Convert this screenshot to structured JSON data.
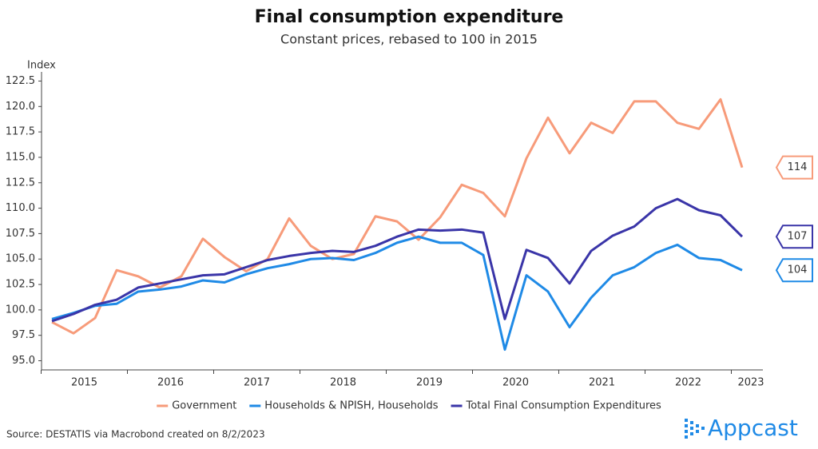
{
  "chart_data": {
    "type": "line",
    "title": "Final consumption expenditure",
    "subtitle": "Constant prices, rebased to 100 in 2015",
    "y_label": "Index",
    "source": "Source: DESTATIS via Macrobond created on 8/2/2023",
    "logo": "Appcast",
    "categories": [
      "2015",
      null,
      null,
      null,
      "2016",
      null,
      null,
      null,
      "2017",
      null,
      null,
      null,
      "2018",
      null,
      null,
      null,
      "2019",
      null,
      null,
      null,
      "2020",
      null,
      null,
      null,
      "2021",
      null,
      null,
      null,
      "2022",
      null,
      null,
      null,
      "2023"
    ],
    "ylim": [
      94.1,
      123.4
    ],
    "yticks": [
      {
        "value": 95,
        "label": "95.0"
      },
      {
        "value": 97.5,
        "label": "97.5"
      },
      {
        "value": 100,
        "label": "100.0"
      },
      {
        "value": 102.5,
        "label": "102.5"
      },
      {
        "value": 105,
        "label": "105.0"
      },
      {
        "value": 107.5,
        "label": "107.5"
      },
      {
        "value": 110,
        "label": "110.0"
      },
      {
        "value": 112.5,
        "label": "112.5"
      },
      {
        "value": 115,
        "label": "115.0"
      },
      {
        "value": 117.5,
        "label": "117.5"
      },
      {
        "value": 120,
        "label": "120.0"
      },
      {
        "value": 122.5,
        "label": "122.5"
      }
    ],
    "legend": "bottom",
    "series": [
      {
        "name": "Government",
        "color": "#f79b7a",
        "last_label": "114",
        "values": [
          98.8,
          97.7,
          99.2,
          103.9,
          103.3,
          102.2,
          103.3,
          107.0,
          105.2,
          103.8,
          105.0,
          109.0,
          106.3,
          105.0,
          105.5,
          109.2,
          108.7,
          106.9,
          109.1,
          112.3,
          111.5,
          109.2,
          114.9,
          118.9,
          115.4,
          118.4,
          117.4,
          120.5,
          120.5,
          118.4,
          117.8,
          120.7,
          114.0
        ]
      },
      {
        "name": "Households & NPISH, Households",
        "color": "#1f8ae6",
        "last_label": "104",
        "values": [
          99.1,
          99.7,
          100.4,
          100.6,
          101.8,
          102.0,
          102.3,
          102.9,
          102.7,
          103.5,
          104.1,
          104.5,
          105.0,
          105.1,
          104.9,
          105.6,
          106.6,
          107.2,
          106.6,
          106.6,
          105.4,
          96.1,
          103.4,
          101.8,
          98.3,
          101.2,
          103.4,
          104.2,
          105.6,
          106.4,
          105.1,
          104.9,
          103.9
        ]
      },
      {
        "name": "Total Final Consumption Expenditures",
        "color": "#3a35a8",
        "last_label": "107",
        "values": [
          98.9,
          99.6,
          100.5,
          101.0,
          102.2,
          102.6,
          103.0,
          103.4,
          103.5,
          104.2,
          104.9,
          105.3,
          105.6,
          105.8,
          105.7,
          106.3,
          107.2,
          107.9,
          107.8,
          107.9,
          107.6,
          99.1,
          105.9,
          105.1,
          102.6,
          105.8,
          107.3,
          108.2,
          110.0,
          110.9,
          109.8,
          109.3,
          107.2
        ]
      }
    ]
  }
}
